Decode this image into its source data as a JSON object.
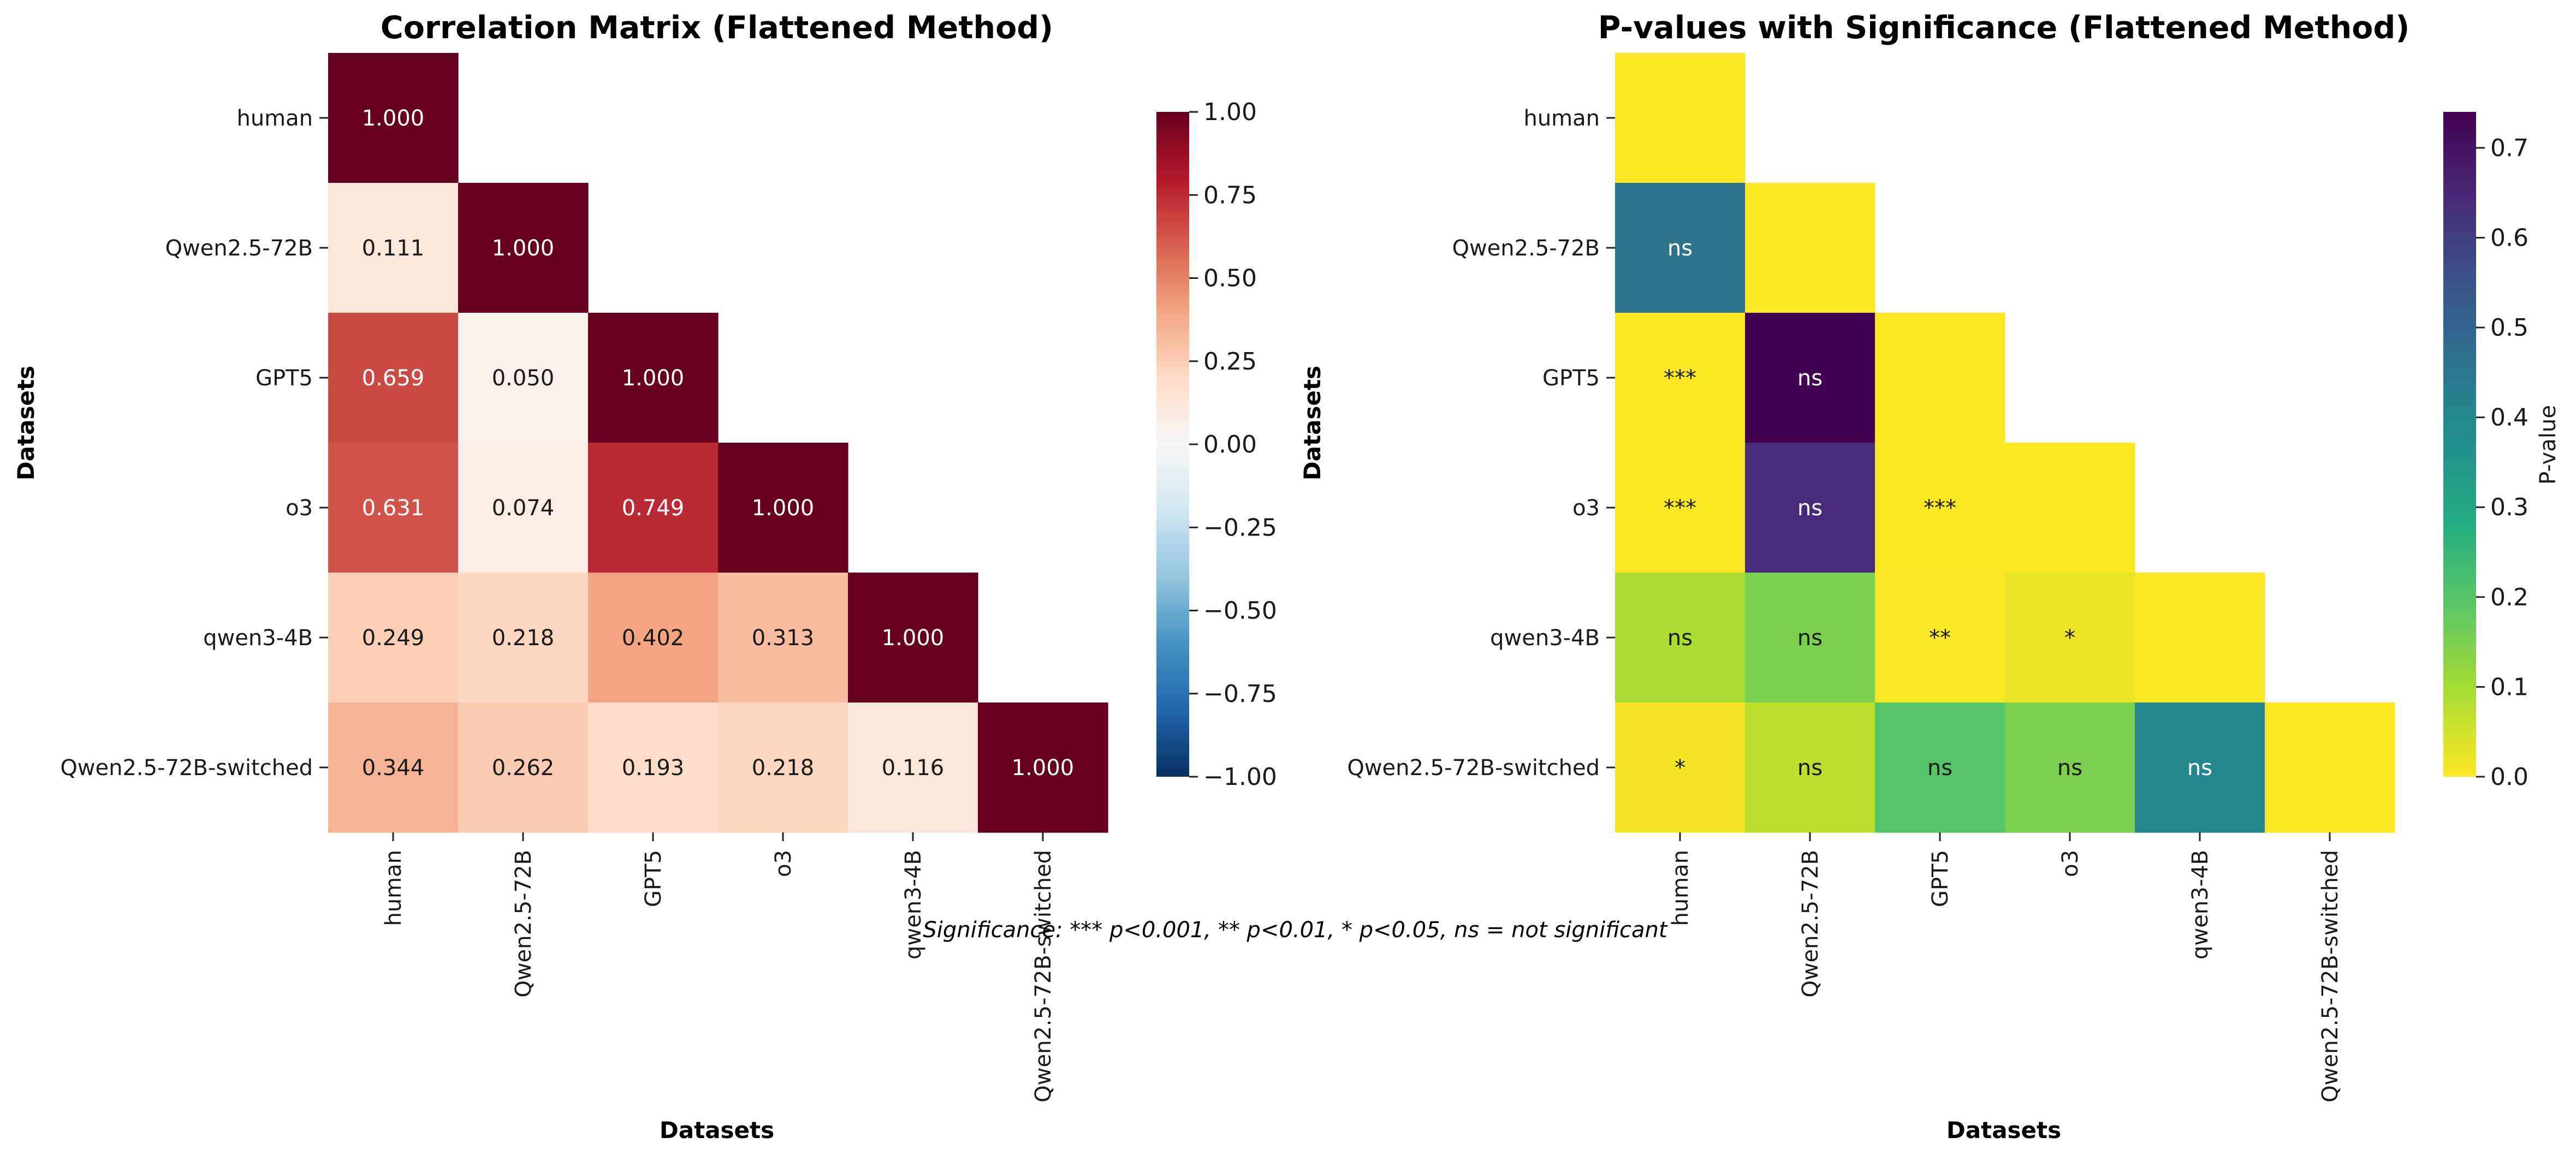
{
  "chart_data": [
    {
      "type": "heatmap",
      "title": "Correlation Matrix (Flattened Method)",
      "xlabel": "Datasets",
      "ylabel": "Datasets",
      "labels": [
        "human",
        "Qwen2.5-72B",
        "GPT5",
        "o3",
        "qwen3-4B",
        "Qwen2.5-72B-switched"
      ],
      "mask": "upper-triangle",
      "values": [
        [
          1.0,
          null,
          null,
          null,
          null,
          null
        ],
        [
          0.111,
          1.0,
          null,
          null,
          null,
          null
        ],
        [
          0.659,
          0.05,
          1.0,
          null,
          null,
          null
        ],
        [
          0.631,
          0.074,
          0.749,
          1.0,
          null,
          null
        ],
        [
          0.249,
          0.218,
          0.402,
          0.313,
          1.0,
          null
        ],
        [
          0.344,
          0.262,
          0.193,
          0.218,
          0.116,
          1.0
        ]
      ],
      "value_labels": [
        [
          "1.000",
          "",
          "",
          "",
          "",
          ""
        ],
        [
          "0.111",
          "1.000",
          "",
          "",
          "",
          ""
        ],
        [
          "0.659",
          "0.050",
          "1.000",
          "",
          "",
          ""
        ],
        [
          "0.631",
          "0.074",
          "0.749",
          "1.000",
          "",
          ""
        ],
        [
          "0.249",
          "0.218",
          "0.402",
          "0.313",
          "1.000",
          ""
        ],
        [
          "0.344",
          "0.262",
          "0.193",
          "0.218",
          "0.116",
          "1.000"
        ]
      ],
      "colormap": "RdBu_r",
      "vmin": -1.0,
      "vmax": 1.0,
      "colorbar": {
        "ticks": [
          1.0,
          0.75,
          0.5,
          0.25,
          0.0,
          -0.25,
          -0.5,
          -0.75,
          -1.0
        ],
        "tick_labels": [
          "1.00",
          "0.75",
          "0.50",
          "0.25",
          "0.00",
          "−0.25",
          "−0.50",
          "−0.75",
          "−1.00"
        ],
        "label": ""
      }
    },
    {
      "type": "heatmap",
      "title": "P-values with Significance (Flattened Method)",
      "xlabel": "Datasets",
      "ylabel": "Datasets",
      "labels": [
        "human",
        "Qwen2.5-72B",
        "GPT5",
        "o3",
        "qwen3-4B",
        "Qwen2.5-72B-switched"
      ],
      "mask": "upper-triangle",
      "values": [
        [
          0.0,
          null,
          null,
          null,
          null,
          null
        ],
        [
          0.46,
          0.0,
          null,
          null,
          null,
          null
        ],
        [
          0.0,
          0.74,
          0.0,
          null,
          null,
          null
        ],
        [
          0.0,
          0.64,
          0.0,
          0.0,
          null,
          null
        ],
        [
          0.09,
          0.15,
          0.003,
          0.02,
          0.0,
          null
        ],
        [
          0.01,
          0.07,
          0.2,
          0.15,
          0.4,
          0.0
        ]
      ],
      "value_labels": [
        [
          "",
          "",
          "",
          "",
          "",
          ""
        ],
        [
          "ns",
          "",
          "",
          "",
          "",
          ""
        ],
        [
          "***",
          "ns",
          "",
          "",
          "",
          ""
        ],
        [
          "***",
          "ns",
          "***",
          "",
          "",
          ""
        ],
        [
          "ns",
          "ns",
          "**",
          "*",
          "",
          ""
        ],
        [
          "*",
          "ns",
          "ns",
          "ns",
          "ns",
          ""
        ]
      ],
      "colormap": "viridis_r",
      "vmin": 0.0,
      "vmax": 0.74,
      "colorbar": {
        "ticks": [
          0.7,
          0.6,
          0.5,
          0.4,
          0.3,
          0.2,
          0.1,
          0.0
        ],
        "tick_labels": [
          "0.7",
          "0.6",
          "0.5",
          "0.4",
          "0.3",
          "0.2",
          "0.1",
          "0.0"
        ],
        "label": "P-value"
      }
    }
  ],
  "footnote": "Significance: *** p<0.001, ** p<0.01, * p<0.05, ns = not significant",
  "colors": {
    "text_dark": "#1a1a1a",
    "text_light": "#ffffff"
  }
}
